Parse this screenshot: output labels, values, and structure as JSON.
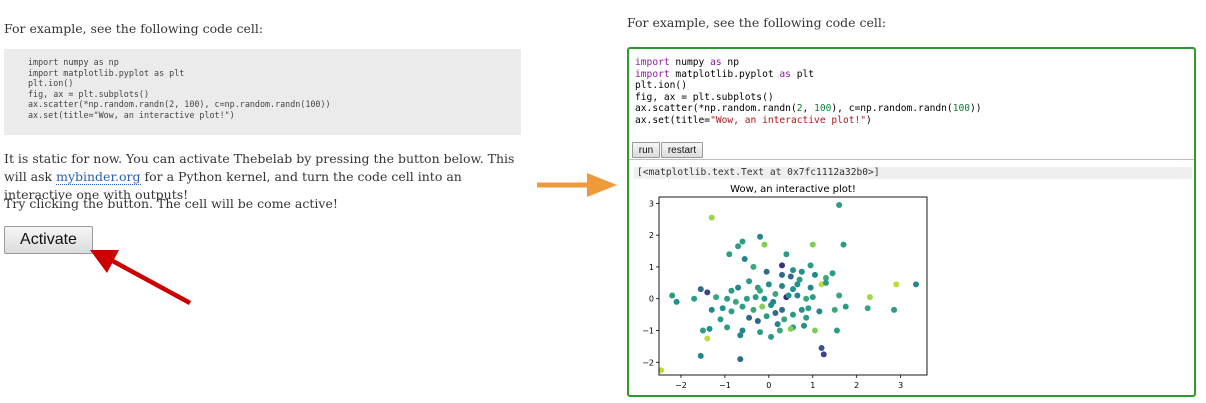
{
  "left": {
    "intro": "For example, see the following code cell:",
    "code_lines": [
      "import numpy as np",
      "import matplotlib.pyplot as plt",
      "plt.ion()",
      "fig, ax = plt.subplots()",
      "ax.scatter(*np.random.randn(2, 100), c=np.random.randn(100))",
      "ax.set(title=\"Wow, an interactive plot!\")"
    ],
    "para1_a": "It is static for now. You can activate Thebelab by pressing the button below. This will ask ",
    "para1_link": "mybinder.org",
    "para1_b": " for a Python kernel, and turn the code cell into an interactive one with outputs!",
    "para2": "Try clicking the button. The cell will be come active!",
    "activate_label": "Activate"
  },
  "right": {
    "intro": "For example, see the following code cell:",
    "run_label": "run",
    "restart_label": "restart",
    "output_text": "[<matplotlib.text.Text at 0x7fc1112a32b0>]"
  },
  "colors": {
    "cell_border": "#2f9930",
    "red_arrow": "#cc0000",
    "orange_arrow": "#ee9a3a",
    "link": "#2a5db0"
  },
  "chart_data": {
    "type": "scatter",
    "title": "Wow, an interactive plot!",
    "xlabel": "",
    "ylabel": "",
    "xlim": [
      -2.5,
      3.6
    ],
    "ylim": [
      -2.4,
      3.2
    ],
    "xticks": [
      "−2",
      "−1",
      "0",
      "1",
      "2",
      "3"
    ],
    "xtick_values": [
      -2,
      -1,
      0,
      1,
      2,
      3
    ],
    "yticks": [
      "−2",
      "−1",
      "0",
      "1",
      "2",
      "3"
    ],
    "ytick_values": [
      -2,
      -1,
      0,
      1,
      2,
      3
    ],
    "colormap": "viridis",
    "points": [
      [
        -1.3,
        2.55,
        0.85
      ],
      [
        1.6,
        2.95,
        0.55
      ],
      [
        -0.2,
        1.95,
        0.45
      ],
      [
        -0.6,
        1.8,
        0.55
      ],
      [
        -0.7,
        1.65,
        0.55
      ],
      [
        -0.1,
        1.7,
        0.8
      ],
      [
        1.0,
        1.7,
        0.8
      ],
      [
        1.7,
        1.7,
        0.55
      ],
      [
        -0.9,
        1.4,
        0.55
      ],
      [
        -0.55,
        1.25,
        0.45
      ],
      [
        0.4,
        1.4,
        0.55
      ],
      [
        -0.35,
        1.0,
        0.6
      ],
      [
        0.3,
        1.05,
        0.15
      ],
      [
        0.55,
        0.9,
        0.5
      ],
      [
        0.75,
        0.85,
        0.5
      ],
      [
        0.3,
        0.75,
        0.35
      ],
      [
        0.5,
        0.7,
        0.35
      ],
      [
        1.05,
        0.75,
        0.45
      ],
      [
        1.45,
        0.8,
        0.55
      ],
      [
        0.7,
        0.6,
        0.55
      ],
      [
        1.3,
        0.65,
        0.6
      ],
      [
        -1.55,
        0.3,
        0.35
      ],
      [
        -1.4,
        0.2,
        0.2
      ],
      [
        -0.85,
        0.25,
        0.55
      ],
      [
        -0.7,
        0.35,
        0.45
      ],
      [
        -0.25,
        0.35,
        0.55
      ],
      [
        0.0,
        0.45,
        0.5
      ],
      [
        0.3,
        0.4,
        0.45
      ],
      [
        0.55,
        0.3,
        0.5
      ],
      [
        0.95,
        0.35,
        0.45
      ],
      [
        1.2,
        0.45,
        0.9
      ],
      [
        1.3,
        0.5,
        0.55
      ],
      [
        -2.2,
        0.1,
        0.55
      ],
      [
        -2.1,
        -0.1,
        0.5
      ],
      [
        -1.7,
        0.0,
        0.55
      ],
      [
        -1.2,
        0.05,
        0.6
      ],
      [
        -0.95,
        0.0,
        0.55
      ],
      [
        -0.75,
        -0.1,
        0.6
      ],
      [
        -0.5,
        0.0,
        0.55
      ],
      [
        -0.3,
        0.05,
        0.55
      ],
      [
        -0.1,
        0.0,
        0.5
      ],
      [
        0.15,
        0.15,
        0.6
      ],
      [
        0.4,
        0.05,
        0.1
      ],
      [
        0.45,
        0.1,
        0.5
      ],
      [
        0.65,
        0.1,
        0.45
      ],
      [
        0.85,
        0.0,
        0.6
      ],
      [
        1.0,
        0.05,
        0.55
      ],
      [
        -1.3,
        -0.35,
        0.45
      ],
      [
        -1.05,
        -0.3,
        0.5
      ],
      [
        -0.85,
        -0.4,
        0.55
      ],
      [
        -0.6,
        -0.25,
        0.55
      ],
      [
        -0.35,
        -0.35,
        0.6
      ],
      [
        -0.15,
        -0.25,
        0.8
      ],
      [
        0.05,
        -0.2,
        0.5
      ],
      [
        0.15,
        -0.45,
        0.35
      ],
      [
        0.3,
        -0.35,
        0.35
      ],
      [
        0.55,
        -0.5,
        0.55
      ],
      [
        0.75,
        -0.35,
        0.5
      ],
      [
        0.9,
        -0.3,
        0.55
      ],
      [
        1.15,
        -0.4,
        0.45
      ],
      [
        1.5,
        -0.35,
        0.6
      ],
      [
        -0.45,
        -0.6,
        0.35
      ],
      [
        -0.25,
        -0.7,
        0.3
      ],
      [
        -0.05,
        -0.55,
        0.55
      ],
      [
        0.2,
        -0.8,
        0.45
      ],
      [
        0.35,
        -0.65,
        0.6
      ],
      [
        0.55,
        -0.9,
        0.55
      ],
      [
        0.8,
        -0.85,
        0.5
      ],
      [
        1.05,
        -1.0,
        0.8
      ],
      [
        1.55,
        -1.0,
        0.55
      ],
      [
        -1.5,
        -1.0,
        0.55
      ],
      [
        -1.35,
        -0.95,
        0.5
      ],
      [
        -0.95,
        -0.9,
        0.55
      ],
      [
        -0.6,
        -1.0,
        0.45
      ],
      [
        -0.2,
        -1.05,
        0.55
      ],
      [
        0.05,
        -1.2,
        0.55
      ],
      [
        0.25,
        -1.0,
        0.6
      ],
      [
        -1.4,
        -1.25,
        0.9
      ],
      [
        -0.65,
        -1.15,
        0.45
      ],
      [
        1.2,
        -1.55,
        0.25
      ],
      [
        1.25,
        -1.75,
        0.2
      ],
      [
        -1.55,
        -1.8,
        0.45
      ],
      [
        -0.65,
        -1.9,
        0.35
      ],
      [
        -2.45,
        -2.25,
        0.9
      ],
      [
        0.5,
        -0.95,
        0.8
      ],
      [
        2.3,
        0.05,
        0.85
      ],
      [
        2.9,
        0.45,
        0.9
      ],
      [
        3.35,
        0.45,
        0.45
      ],
      [
        2.25,
        -0.3,
        0.6
      ],
      [
        1.75,
        -0.25,
        0.55
      ],
      [
        2.85,
        -0.35,
        0.55
      ],
      [
        -0.2,
        0.25,
        0.6
      ],
      [
        0.1,
        -0.1,
        0.45
      ],
      [
        -0.45,
        0.55,
        0.55
      ],
      [
        0.65,
        0.45,
        0.5
      ],
      [
        0.85,
        -0.6,
        0.55
      ],
      [
        -1.1,
        -0.65,
        0.55
      ],
      [
        1.6,
        0.1,
        0.6
      ],
      [
        0.95,
        1.05,
        0.55
      ],
      [
        -0.05,
        0.85,
        0.35
      ]
    ]
  }
}
